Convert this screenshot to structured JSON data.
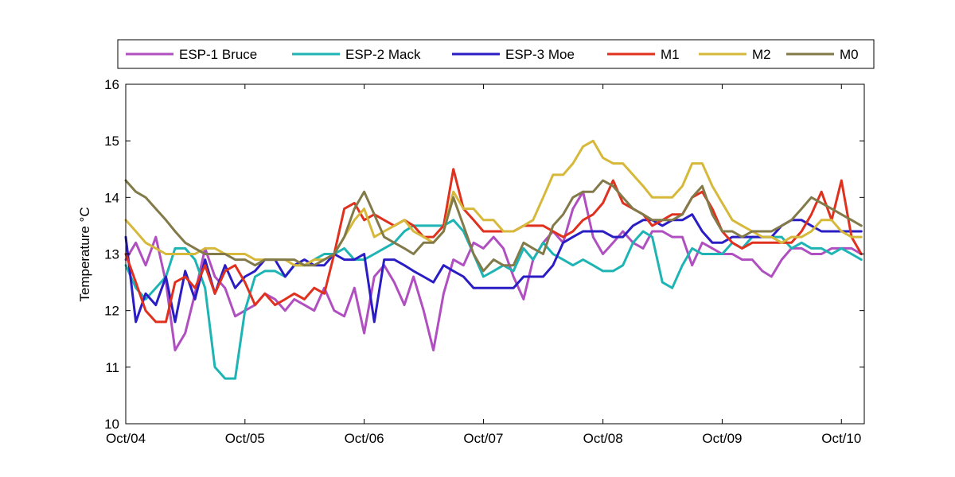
{
  "chart_data": {
    "type": "line",
    "ylabel": "Temperature °C",
    "xlabel": "",
    "title": "",
    "ylim": [
      10,
      16
    ],
    "xlim": [
      "2004-10-01",
      "2010-12-10"
    ],
    "yticks": [
      "10",
      "11",
      "12",
      "13",
      "14",
      "15",
      "16"
    ],
    "xtick_labels": [
      "Oct/04",
      "Oct/05",
      "Oct/06",
      "Oct/07",
      "Oct/08",
      "Oct/09",
      "Oct/10"
    ],
    "xtick_dates": [
      "2004-10-01",
      "2005-10-01",
      "2006-10-01",
      "2007-10-01",
      "2008-10-01",
      "2009-10-01",
      "2010-10-01"
    ],
    "legend_position": "top",
    "series": [
      {
        "name": "ESP-1 Bruce",
        "color": "#b04fc0",
        "x": [
          "2004-10-01",
          "2004-11-01",
          "2004-12-01",
          "2005-01-01",
          "2005-02-01",
          "2005-03-01",
          "2005-04-01",
          "2005-05-01",
          "2005-06-01",
          "2005-07-01",
          "2005-08-01",
          "2005-09-01",
          "2005-10-01",
          "2005-11-01",
          "2005-12-01",
          "2006-01-01",
          "2006-02-01",
          "2006-03-01",
          "2006-04-01",
          "2006-05-01",
          "2006-06-01",
          "2006-07-01",
          "2006-08-01",
          "2006-09-01",
          "2006-10-01",
          "2006-11-01",
          "2006-12-01",
          "2007-01-01",
          "2007-02-01",
          "2007-03-01",
          "2007-04-01",
          "2007-05-01",
          "2007-06-01",
          "2007-07-01",
          "2007-08-01",
          "2007-09-01",
          "2007-10-01",
          "2007-11-01",
          "2007-12-01",
          "2008-01-01",
          "2008-02-01",
          "2008-03-01",
          "2008-04-01",
          "2008-05-01",
          "2008-06-01",
          "2008-07-01",
          "2008-08-01",
          "2008-09-01",
          "2008-10-01",
          "2008-11-01",
          "2008-12-01",
          "2009-01-01",
          "2009-02-01",
          "2009-03-01",
          "2009-04-01",
          "2009-05-01",
          "2009-06-01",
          "2009-07-01",
          "2009-08-01",
          "2009-09-01",
          "2009-10-01",
          "2009-11-01",
          "2009-12-01",
          "2010-01-01",
          "2010-02-01",
          "2010-03-01",
          "2010-04-01",
          "2010-05-01",
          "2010-06-01",
          "2010-07-01",
          "2010-08-01",
          "2010-09-01",
          "2010-10-01",
          "2010-11-01",
          "2010-12-01"
        ],
        "values": [
          12.9,
          13.2,
          12.8,
          13.3,
          12.5,
          11.3,
          11.6,
          12.3,
          13.1,
          12.6,
          12.4,
          11.9,
          12.0,
          12.1,
          12.3,
          12.2,
          12.0,
          12.2,
          12.1,
          12.0,
          12.4,
          12.0,
          11.9,
          12.4,
          11.6,
          12.6,
          12.8,
          12.5,
          12.1,
          12.6,
          12.0,
          11.3,
          12.3,
          12.9,
          12.8,
          13.2,
          13.1,
          13.3,
          13.1,
          12.6,
          12.2,
          12.9,
          13.2,
          13.4,
          13.2,
          13.8,
          14.1,
          13.3,
          13.0,
          13.2,
          13.4,
          13.2,
          13.1,
          13.4,
          13.4,
          13.3,
          13.3,
          12.8,
          13.2,
          13.1,
          13.0,
          13.0,
          12.9,
          12.9,
          12.7,
          12.6,
          12.9,
          13.1,
          13.1,
          13.0,
          13.0,
          13.1,
          13.1,
          13.1,
          13.0
        ]
      },
      {
        "name": "ESP-2 Mack",
        "color": "#1fb4b4",
        "x": [
          "2004-10-01",
          "2004-11-01",
          "2004-12-01",
          "2005-01-01",
          "2005-02-01",
          "2005-03-01",
          "2005-04-01",
          "2005-05-01",
          "2005-06-01",
          "2005-07-01",
          "2005-08-01",
          "2005-09-01",
          "2005-10-01",
          "2005-11-01",
          "2005-12-01",
          "2006-01-01",
          "2006-02-01",
          "2006-03-01",
          "2006-04-01",
          "2006-05-01",
          "2006-06-01",
          "2006-07-01",
          "2006-08-01",
          "2006-09-01",
          "2006-10-01",
          "2006-11-01",
          "2006-12-01",
          "2007-01-01",
          "2007-02-01",
          "2007-03-01",
          "2007-04-01",
          "2007-05-01",
          "2007-06-01",
          "2007-07-01",
          "2007-08-01",
          "2007-09-01",
          "2007-10-01",
          "2007-11-01",
          "2007-12-01",
          "2008-01-01",
          "2008-02-01",
          "2008-03-01",
          "2008-04-01",
          "2008-05-01",
          "2008-06-01",
          "2008-07-01",
          "2008-08-01",
          "2008-09-01",
          "2008-10-01",
          "2008-11-01",
          "2008-12-01",
          "2009-01-01",
          "2009-02-01",
          "2009-03-01",
          "2009-04-01",
          "2009-05-01",
          "2009-06-01",
          "2009-07-01",
          "2009-08-01",
          "2009-09-01",
          "2009-10-01",
          "2009-11-01",
          "2009-12-01",
          "2010-01-01",
          "2010-02-01",
          "2010-03-01",
          "2010-04-01",
          "2010-05-01",
          "2010-06-01",
          "2010-07-01",
          "2010-08-01",
          "2010-09-01",
          "2010-10-01",
          "2010-11-01",
          "2010-12-01"
        ],
        "values": [
          12.8,
          12.4,
          12.2,
          12.4,
          12.6,
          13.1,
          13.1,
          12.9,
          12.4,
          11.0,
          10.8,
          10.8,
          12.0,
          12.6,
          12.7,
          12.7,
          12.6,
          12.8,
          12.8,
          12.9,
          13.0,
          13.0,
          13.1,
          12.9,
          12.9,
          13.0,
          13.1,
          13.2,
          13.4,
          13.5,
          13.5,
          13.5,
          13.5,
          13.6,
          13.4,
          13.0,
          12.6,
          12.7,
          12.8,
          12.7,
          13.1,
          12.9,
          13.2,
          13.0,
          12.9,
          12.8,
          12.9,
          12.8,
          12.7,
          12.7,
          12.8,
          13.2,
          13.4,
          13.3,
          12.5,
          12.4,
          12.8,
          13.1,
          13.0,
          13.0,
          13.0,
          13.2,
          13.1,
          13.3,
          13.3,
          13.3,
          13.3,
          13.1,
          13.2,
          13.1,
          13.1,
          13.0,
          13.1,
          13.0,
          12.9
        ]
      },
      {
        "name": "ESP-3 Moe",
        "color": "#2a1dc4",
        "x": [
          "2004-10-01",
          "2004-11-01",
          "2004-12-01",
          "2005-01-01",
          "2005-02-01",
          "2005-03-01",
          "2005-04-01",
          "2005-05-01",
          "2005-06-01",
          "2005-07-01",
          "2005-08-01",
          "2005-09-01",
          "2005-10-01",
          "2005-11-01",
          "2005-12-01",
          "2006-01-01",
          "2006-02-01",
          "2006-03-01",
          "2006-04-01",
          "2006-05-01",
          "2006-06-01",
          "2006-07-01",
          "2006-08-01",
          "2006-09-01",
          "2006-10-01",
          "2006-11-01",
          "2006-12-01",
          "2007-01-01",
          "2007-02-01",
          "2007-03-01",
          "2007-04-01",
          "2007-05-01",
          "2007-06-01",
          "2007-07-01",
          "2007-08-01",
          "2007-09-01",
          "2007-10-01",
          "2007-11-01",
          "2007-12-01",
          "2008-01-01",
          "2008-02-01",
          "2008-03-01",
          "2008-04-01",
          "2008-05-01",
          "2008-06-01",
          "2008-07-01",
          "2008-08-01",
          "2008-09-01",
          "2008-10-01",
          "2008-11-01",
          "2008-12-01",
          "2009-01-01",
          "2009-02-01",
          "2009-03-01",
          "2009-04-01",
          "2009-05-01",
          "2009-06-01",
          "2009-07-01",
          "2009-08-01",
          "2009-09-01",
          "2009-10-01",
          "2009-11-01",
          "2009-12-01",
          "2010-01-01",
          "2010-02-01",
          "2010-03-01",
          "2010-04-01",
          "2010-05-01",
          "2010-06-01",
          "2010-07-01",
          "2010-08-01",
          "2010-09-01",
          "2010-10-01",
          "2010-11-01",
          "2010-12-01"
        ],
        "values": [
          13.3,
          11.8,
          12.3,
          12.1,
          12.6,
          11.8,
          12.7,
          12.2,
          12.9,
          12.3,
          12.8,
          12.4,
          12.6,
          12.7,
          12.9,
          12.9,
          12.6,
          12.8,
          12.9,
          12.8,
          12.8,
          13.0,
          12.9,
          12.9,
          13.0,
          11.8,
          12.9,
          12.9,
          12.8,
          12.7,
          12.6,
          12.5,
          12.8,
          12.7,
          12.6,
          12.4,
          12.4,
          12.4,
          12.4,
          12.4,
          12.6,
          12.6,
          12.6,
          12.8,
          13.2,
          13.3,
          13.4,
          13.4,
          13.4,
          13.3,
          13.3,
          13.5,
          13.6,
          13.6,
          13.5,
          13.6,
          13.6,
          13.7,
          13.4,
          13.2,
          13.2,
          13.3,
          13.3,
          13.3,
          13.3,
          13.3,
          13.5,
          13.6,
          13.6,
          13.5,
          13.4,
          13.4,
          13.4,
          13.4,
          13.4
        ]
      },
      {
        "name": "M1",
        "color": "#e0301e",
        "x": [
          "2004-10-01",
          "2004-11-01",
          "2004-12-01",
          "2005-01-01",
          "2005-02-01",
          "2005-03-01",
          "2005-04-01",
          "2005-05-01",
          "2005-06-01",
          "2005-07-01",
          "2005-08-01",
          "2005-09-01",
          "2005-10-01",
          "2005-11-01",
          "2005-12-01",
          "2006-01-01",
          "2006-02-01",
          "2006-03-01",
          "2006-04-01",
          "2006-05-01",
          "2006-06-01",
          "2006-07-01",
          "2006-08-01",
          "2006-09-01",
          "2006-10-01",
          "2006-11-01",
          "2006-12-01",
          "2007-01-01",
          "2007-02-01",
          "2007-03-01",
          "2007-04-01",
          "2007-05-01",
          "2007-06-01",
          "2007-07-01",
          "2007-08-01",
          "2007-09-01",
          "2007-10-01",
          "2007-11-01",
          "2007-12-01",
          "2008-01-01",
          "2008-02-01",
          "2008-03-01",
          "2008-04-01",
          "2008-05-01",
          "2008-06-01",
          "2008-07-01",
          "2008-08-01",
          "2008-09-01",
          "2008-10-01",
          "2008-11-01",
          "2008-12-01",
          "2009-01-01",
          "2009-02-01",
          "2009-03-01",
          "2009-04-01",
          "2009-05-01",
          "2009-06-01",
          "2009-07-01",
          "2009-08-01",
          "2009-09-01",
          "2009-10-01",
          "2009-11-01",
          "2009-12-01",
          "2010-01-01",
          "2010-02-01",
          "2010-03-01",
          "2010-04-01",
          "2010-05-01",
          "2010-06-01",
          "2010-07-01",
          "2010-08-01",
          "2010-09-01",
          "2010-10-01",
          "2010-11-01",
          "2010-12-01"
        ],
        "values": [
          13.0,
          12.5,
          12.0,
          11.8,
          11.8,
          12.5,
          12.6,
          12.4,
          12.8,
          12.3,
          12.7,
          12.8,
          12.5,
          12.1,
          12.3,
          12.1,
          12.2,
          12.3,
          12.2,
          12.4,
          12.3,
          13.0,
          13.8,
          13.9,
          13.6,
          13.7,
          13.6,
          13.5,
          13.6,
          13.5,
          13.3,
          13.3,
          13.5,
          14.5,
          13.8,
          13.6,
          13.4,
          13.4,
          13.4,
          13.4,
          13.5,
          13.5,
          13.5,
          13.4,
          13.3,
          13.4,
          13.6,
          13.7,
          13.9,
          14.3,
          13.9,
          13.8,
          13.7,
          13.5,
          13.6,
          13.7,
          13.7,
          14.0,
          14.1,
          13.8,
          13.4,
          13.2,
          13.1,
          13.2,
          13.2,
          13.2,
          13.2,
          13.2,
          13.4,
          13.7,
          14.1,
          13.6,
          14.3,
          13.3,
          13.0
        ]
      },
      {
        "name": "M2",
        "color": "#d6b83a",
        "x": [
          "2004-10-01",
          "2004-11-01",
          "2004-12-01",
          "2005-01-01",
          "2005-02-01",
          "2005-03-01",
          "2005-04-01",
          "2005-05-01",
          "2005-06-01",
          "2005-07-01",
          "2005-08-01",
          "2005-09-01",
          "2005-10-01",
          "2005-11-01",
          "2005-12-01",
          "2006-01-01",
          "2006-02-01",
          "2006-03-01",
          "2006-04-01",
          "2006-05-01",
          "2006-06-01",
          "2006-07-01",
          "2006-08-01",
          "2006-09-01",
          "2006-10-01",
          "2006-11-01",
          "2006-12-01",
          "2007-01-01",
          "2007-02-01",
          "2007-03-01",
          "2007-04-01",
          "2007-05-01",
          "2007-06-01",
          "2007-07-01",
          "2007-08-01",
          "2007-09-01",
          "2007-10-01",
          "2007-11-01",
          "2007-12-01",
          "2008-01-01",
          "2008-02-01",
          "2008-03-01",
          "2008-04-01",
          "2008-05-01",
          "2008-06-01",
          "2008-07-01",
          "2008-08-01",
          "2008-09-01",
          "2008-10-01",
          "2008-11-01",
          "2008-12-01",
          "2009-01-01",
          "2009-02-01",
          "2009-03-01",
          "2009-04-01",
          "2009-05-01",
          "2009-06-01",
          "2009-07-01",
          "2009-08-01",
          "2009-09-01",
          "2009-10-01",
          "2009-11-01",
          "2009-12-01",
          "2010-01-01",
          "2010-02-01",
          "2010-03-01",
          "2010-04-01",
          "2010-05-01",
          "2010-06-01",
          "2010-07-01",
          "2010-08-01",
          "2010-09-01",
          "2010-10-01",
          "2010-11-01",
          "2010-12-01"
        ],
        "values": [
          13.6,
          13.4,
          13.2,
          13.1,
          13.0,
          13.0,
          13.0,
          13.0,
          13.1,
          13.1,
          13.0,
          13.0,
          13.0,
          12.9,
          12.9,
          12.9,
          12.9,
          12.8,
          12.8,
          12.9,
          12.9,
          13.0,
          13.3,
          13.6,
          13.8,
          13.3,
          13.4,
          13.5,
          13.6,
          13.4,
          13.3,
          13.2,
          13.4,
          14.1,
          13.8,
          13.8,
          13.6,
          13.6,
          13.4,
          13.4,
          13.5,
          13.6,
          14.0,
          14.4,
          14.4,
          14.6,
          14.9,
          15.0,
          14.7,
          14.6,
          14.6,
          14.4,
          14.2,
          14.0,
          14.0,
          14.0,
          14.2,
          14.6,
          14.6,
          14.2,
          13.9,
          13.6,
          13.5,
          13.4,
          13.3,
          13.3,
          13.2,
          13.3,
          13.3,
          13.4,
          13.6,
          13.6,
          13.4,
          13.3,
          13.3
        ]
      },
      {
        "name": "M0",
        "color": "#827a48",
        "x": [
          "2004-10-01",
          "2004-11-01",
          "2004-12-01",
          "2005-01-01",
          "2005-02-01",
          "2005-03-01",
          "2005-04-01",
          "2005-05-01",
          "2005-06-01",
          "2005-07-01",
          "2005-08-01",
          "2005-09-01",
          "2005-10-01",
          "2005-11-01",
          "2005-12-01",
          "2006-01-01",
          "2006-02-01",
          "2006-03-01",
          "2006-04-01",
          "2006-05-01",
          "2006-06-01",
          "2006-07-01",
          "2006-08-01",
          "2006-09-01",
          "2006-10-01",
          "2006-11-01",
          "2006-12-01",
          "2007-01-01",
          "2007-02-01",
          "2007-03-01",
          "2007-04-01",
          "2007-05-01",
          "2007-06-01",
          "2007-07-01",
          "2007-08-01",
          "2007-09-01",
          "2007-10-01",
          "2007-11-01",
          "2007-12-01",
          "2008-01-01",
          "2008-02-01",
          "2008-03-01",
          "2008-04-01",
          "2008-05-01",
          "2008-06-01",
          "2008-07-01",
          "2008-08-01",
          "2008-09-01",
          "2008-10-01",
          "2008-11-01",
          "2008-12-01",
          "2009-01-01",
          "2009-02-01",
          "2009-03-01",
          "2009-04-01",
          "2009-05-01",
          "2009-06-01",
          "2009-07-01",
          "2009-08-01",
          "2009-09-01",
          "2009-10-01",
          "2009-11-01",
          "2009-12-01",
          "2010-01-01",
          "2010-02-01",
          "2010-03-01",
          "2010-04-01",
          "2010-05-01",
          "2010-06-01",
          "2010-07-01",
          "2010-08-01",
          "2010-09-01",
          "2010-10-01",
          "2010-11-01",
          "2010-12-01"
        ],
        "values": [
          14.3,
          14.1,
          14.0,
          13.8,
          13.6,
          13.4,
          13.2,
          13.1,
          13.0,
          13.0,
          13.0,
          12.9,
          12.9,
          12.8,
          12.9,
          12.9,
          12.9,
          12.9,
          12.8,
          12.8,
          12.9,
          13.0,
          13.3,
          13.8,
          14.1,
          13.7,
          13.3,
          13.2,
          13.1,
          13.0,
          13.2,
          13.2,
          13.4,
          14.0,
          13.5,
          13.0,
          12.7,
          12.9,
          12.8,
          12.8,
          13.2,
          13.1,
          13.0,
          13.5,
          13.7,
          14.0,
          14.1,
          14.1,
          14.3,
          14.2,
          14.0,
          13.8,
          13.7,
          13.6,
          13.6,
          13.6,
          13.7,
          14.0,
          14.2,
          13.7,
          13.4,
          13.4,
          13.3,
          13.4,
          13.4,
          13.4,
          13.5,
          13.6,
          13.8,
          14.0,
          13.9,
          13.8,
          13.7,
          13.6,
          13.5
        ]
      }
    ]
  }
}
